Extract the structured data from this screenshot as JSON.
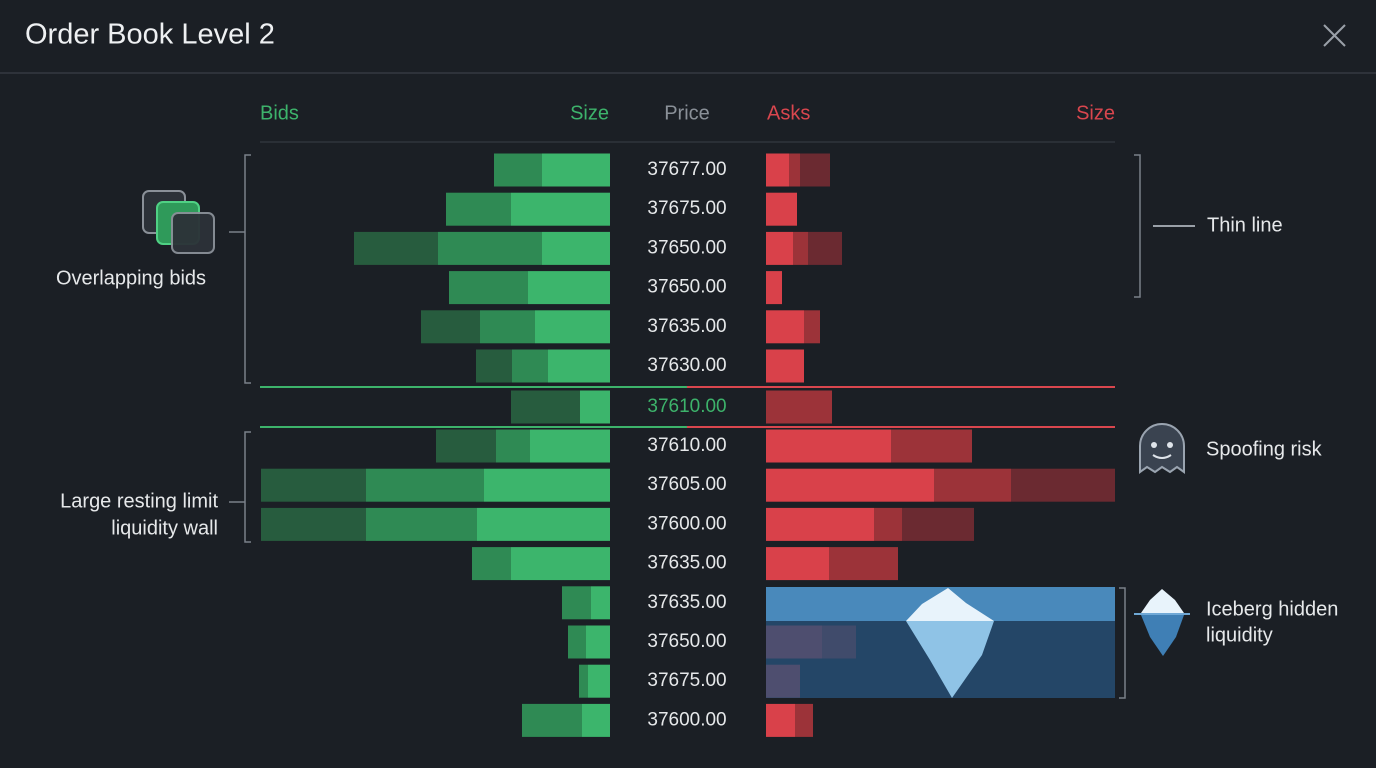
{
  "header": {
    "title": "Order Book Level 2"
  },
  "columns": {
    "bids": "Bids",
    "bid_size": "Size",
    "price": "Price",
    "asks": "Asks",
    "ask_size": "Size"
  },
  "upper_rows": [
    {
      "price": "37677.00",
      "bid": [
        68,
        48
      ],
      "ask": [
        23,
        11,
        30
      ]
    },
    {
      "price": "37675.00",
      "bid": [
        99,
        65
      ],
      "ask": [
        31
      ]
    },
    {
      "price": "37650.00",
      "bid": [
        68,
        104,
        84
      ],
      "ask": [
        27,
        15,
        34
      ]
    },
    {
      "price": "37650.00",
      "bid": [
        82,
        79
      ],
      "ask": [
        16
      ]
    },
    {
      "price": "37635.00",
      "bid": [
        75,
        55,
        59
      ],
      "ask": [
        38,
        16
      ]
    },
    {
      "price": "37630.00",
      "bid": [
        62,
        36,
        36
      ],
      "ask": [
        38
      ]
    }
  ],
  "spread_row": {
    "price": "37610.00",
    "bid": [
      30,
      69
    ],
    "ask": [
      66
    ]
  },
  "lower_rows": [
    {
      "price": "37610.00",
      "bid": [
        80,
        34,
        60
      ],
      "ask": [
        125,
        81
      ]
    },
    {
      "price": "37605.00",
      "bid": [
        126,
        118,
        105
      ],
      "ask": [
        168,
        77,
        104
      ]
    },
    {
      "price": "37600.00",
      "bid": [
        133,
        111,
        105
      ],
      "ask": [
        108,
        28,
        72
      ]
    },
    {
      "price": "37635.00",
      "bid": [
        99,
        39
      ],
      "ask": [
        63,
        69
      ]
    },
    {
      "price": "37635.00",
      "bid": [
        19,
        29
      ],
      "ask": [
        0
      ]
    },
    {
      "price": "37650.00",
      "bid": [
        24,
        18
      ],
      "ask": [
        56,
        34
      ]
    },
    {
      "price": "37675.00",
      "bid": [
        22,
        9
      ],
      "ask": [
        34
      ]
    },
    {
      "price": "37600.00",
      "bid": [
        28,
        60
      ],
      "ask": [
        29,
        18
      ]
    }
  ],
  "annotations": {
    "overlapping_bids": "Overlapping bids",
    "liquidity_wall": [
      "Large resting limit",
      "liquidity wall"
    ],
    "thin_line": "Thin line",
    "spoofing_risk": "Spoofing risk",
    "iceberg": [
      "Iceberg hidden",
      "liquidity"
    ]
  }
}
